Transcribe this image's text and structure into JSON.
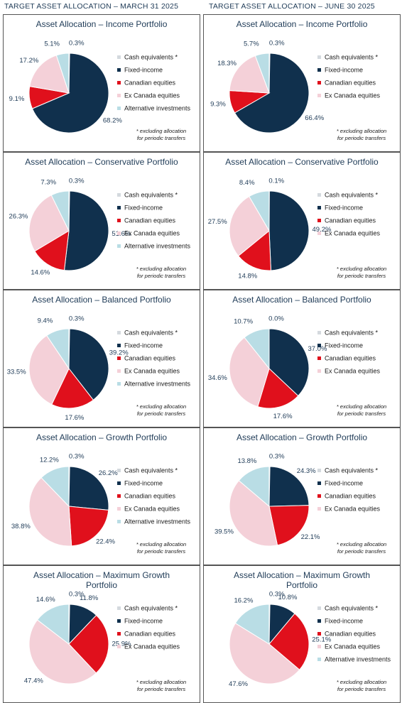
{
  "headers": [
    "TARGET ASSET ALLOCATION – MARCH 31 2025",
    "TARGET ASSET ALLOCATION – JUNE 30 2025"
  ],
  "chart_data": [
    {
      "type": "pie",
      "title": "Asset Allocation – Income Portfolio",
      "categories": [
        "Cash equivalents *",
        "Fixed-income",
        "Canadian equities",
        "Ex Canada equities",
        "Alternative investments"
      ],
      "values": [
        0.3,
        68.2,
        9.1,
        17.2,
        5.1
      ],
      "value_labels": [
        "0.3%",
        "68.2%",
        "9.1%",
        "17.2%",
        "5.1%"
      ],
      "colors": [
        "#d4d9de",
        "#10304d",
        "#e0101c",
        "#f4d0d8",
        "#b9dde5"
      ],
      "note": [
        "* excluding allocation",
        "for periodic transfers"
      ]
    },
    {
      "type": "pie",
      "title": "Asset Allocation – Conservative Portfolio",
      "categories": [
        "Cash equivalents *",
        "Fixed-income",
        "Canadian equities",
        "Ex Canada equities",
        "Alternative investments"
      ],
      "values": [
        0.3,
        51.6,
        14.6,
        26.3,
        7.3
      ],
      "value_labels": [
        "0.3%",
        "51.6%",
        "14.6%",
        "26.3%",
        "7.3%"
      ],
      "colors": [
        "#d4d9de",
        "#10304d",
        "#e0101c",
        "#f4d0d8",
        "#b9dde5"
      ],
      "note": [
        "* excluding allocation",
        "for periodic transfers"
      ]
    },
    {
      "type": "pie",
      "title": "Asset Allocation – Balanced Portfolio",
      "categories": [
        "Cash equivalents *",
        "Fixed-income",
        "Canadian equities",
        "Ex Canada equities",
        "Alternative investments"
      ],
      "values": [
        0.3,
        39.2,
        17.6,
        33.5,
        9.4
      ],
      "value_labels": [
        "0.3%",
        "39.2%",
        "17.6%",
        "33.5%",
        "9.4%"
      ],
      "colors": [
        "#d4d9de",
        "#10304d",
        "#e0101c",
        "#f4d0d8",
        "#b9dde5"
      ],
      "note": [
        "* excluding allocation",
        "for periodic transfers"
      ]
    },
    {
      "type": "pie",
      "title": "Asset Allocation – Growth Portfolio",
      "categories": [
        "Cash equivalents *",
        "Fixed-income",
        "Canadian equities",
        "Ex Canada equities",
        "Alternative investments"
      ],
      "values": [
        0.3,
        26.2,
        22.4,
        38.8,
        12.2
      ],
      "value_labels": [
        "0.3%",
        "26.2%",
        "22.4%",
        "38.8%",
        "12.2%"
      ],
      "colors": [
        "#d4d9de",
        "#10304d",
        "#e0101c",
        "#f4d0d8",
        "#b9dde5"
      ],
      "note": [
        "* excluding allocation",
        "for periodic transfers"
      ]
    },
    {
      "type": "pie",
      "title": "Asset Allocation – Maximum Growth Portfolio",
      "categories": [
        "Cash equivalents *",
        "Fixed-income",
        "Canadian equities",
        "Ex Canada equities",
        null
      ],
      "values": [
        0.3,
        11.8,
        25.9,
        47.4,
        14.6
      ],
      "value_labels": [
        "0.3%",
        "11.8%",
        "25.9%",
        "47.4%",
        "14.6%"
      ],
      "colors": [
        "#d4d9de",
        "#10304d",
        "#e0101c",
        "#f4d0d8",
        "#b9dde5"
      ],
      "note": [
        "* excluding allocation",
        "for periodic transfers"
      ]
    },
    {
      "type": "pie",
      "title": "Asset Allocation – Income Portfolio",
      "categories": [
        "Cash equivalents *",
        "Fixed-income",
        "Canadian equities",
        "Ex Canada equities",
        null
      ],
      "values": [
        0.3,
        66.4,
        9.3,
        18.3,
        5.7
      ],
      "value_labels": [
        "0.3%",
        "66.4%",
        "9.3%",
        "18.3%",
        "5.7%"
      ],
      "colors": [
        "#d4d9de",
        "#10304d",
        "#e0101c",
        "#f4d0d8",
        "#b9dde5"
      ],
      "note": [
        "* excluding allocation",
        "for periodic transfers"
      ]
    },
    {
      "type": "pie",
      "title": "Asset Allocation – Conservative Portfolio",
      "categories": [
        "Cash equivalents *",
        "Fixed-income",
        "Canadian equities",
        "Ex Canada equities",
        null
      ],
      "values": [
        0.1,
        49.2,
        14.8,
        27.5,
        8.4
      ],
      "value_labels": [
        "0.1%",
        "49.2%",
        "14.8%",
        "27.5%",
        "8.4%"
      ],
      "colors": [
        "#d4d9de",
        "#10304d",
        "#e0101c",
        "#f4d0d8",
        "#b9dde5"
      ],
      "note": [
        "* excluding allocation",
        "for periodic transfers"
      ]
    },
    {
      "type": "pie",
      "title": "Asset Allocation – Balanced Portfolio",
      "categories": [
        "Cash equivalents *",
        "Fixed-income",
        "Canadian equities",
        "Ex Canada equities",
        null
      ],
      "values": [
        0,
        37,
        17.6,
        34.6,
        10.7
      ],
      "value_labels": [
        "0.0%",
        "37.0%",
        "17.6%",
        "34.6%",
        "10.7%"
      ],
      "colors": [
        "#d4d9de",
        "#10304d",
        "#e0101c",
        "#f4d0d8",
        "#b9dde5"
      ],
      "note": [
        "* excluding allocation",
        "for periodic transfers"
      ]
    },
    {
      "type": "pie",
      "title": "Asset Allocation – Growth Portfolio",
      "categories": [
        "Cash equivalents *",
        "Fixed-income",
        "Canadian equities",
        "Ex Canada equities",
        null
      ],
      "values": [
        0.3,
        24.3,
        22.1,
        39.5,
        13.8
      ],
      "value_labels": [
        "0.3%",
        "24.3%",
        "22.1%",
        "39.5%",
        "13.8%"
      ],
      "colors": [
        "#d4d9de",
        "#10304d",
        "#e0101c",
        "#f4d0d8",
        "#b9dde5"
      ],
      "note": [
        "* excluding allocation",
        "for periodic transfers"
      ]
    },
    {
      "type": "pie",
      "title": "Asset Allocation – Maximum Growth Portfolio",
      "categories": [
        "Cash equivalents *",
        "Fixed-income",
        "Canadian equities",
        "Ex Canada equities",
        "Alternative investments"
      ],
      "values": [
        0.3,
        10.8,
        25.1,
        47.6,
        16.2
      ],
      "value_labels": [
        "0.3%",
        "10.8%",
        "25.1%",
        "47.6%",
        "16.2%"
      ],
      "colors": [
        "#d4d9de",
        "#10304d",
        "#e0101c",
        "#f4d0d8",
        "#b9dde5"
      ],
      "note": [
        "* excluding allocation",
        "for periodic transfers"
      ]
    }
  ]
}
